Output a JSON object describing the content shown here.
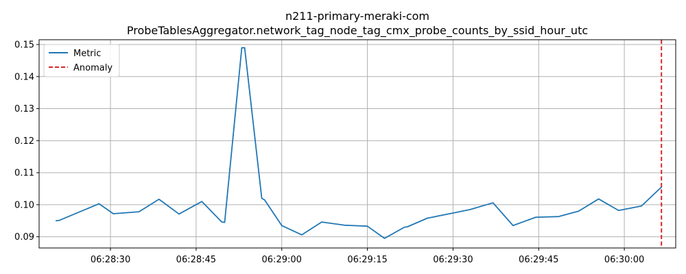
{
  "chart_data": {
    "type": "line",
    "title": "n211-primary-meraki-com",
    "subtitle": "ProbeTablesAggregator.network_tag_node_tag_cmx_probe_counts_by_ssid_hour_utc",
    "xlabel": "",
    "ylabel": "",
    "x_axis": {
      "type": "time",
      "range": [
        "06:28:17.5",
        "06:30:09.0"
      ],
      "ticks": [
        "06:28:30",
        "06:28:45",
        "06:29:00",
        "06:29:15",
        "06:29:30",
        "06:29:45",
        "06:30:00"
      ]
    },
    "y_axis": {
      "range": [
        0.0865,
        0.1515
      ],
      "ticks": [
        "0.09",
        "0.10",
        "0.11",
        "0.12",
        "0.13",
        "0.14",
        "0.15"
      ]
    },
    "grid": true,
    "legend_position": "top-left",
    "series": [
      {
        "name": "Metric",
        "color": "#1f77b4",
        "points": [
          [
            "06:28:20.5",
            0.095
          ],
          [
            "06:28:21.0",
            0.0951
          ],
          [
            "06:28:28.0",
            0.1003
          ],
          [
            "06:28:30.5",
            0.0972
          ],
          [
            "06:28:35.0",
            0.0978
          ],
          [
            "06:28:38.5",
            0.1017
          ],
          [
            "06:28:42.0",
            0.0971
          ],
          [
            "06:28:46.0",
            0.101
          ],
          [
            "06:28:49.5",
            0.0946
          ],
          [
            "06:28:50.0",
            0.0945
          ],
          [
            "06:28:53.0",
            0.149
          ],
          [
            "06:28:53.5",
            0.149
          ],
          [
            "06:28:56.5",
            0.102
          ],
          [
            "06:28:57.0",
            0.1015
          ],
          [
            "06:29:00.0",
            0.0935
          ],
          [
            "06:29:03.5",
            0.0906
          ],
          [
            "06:29:07.0",
            0.0946
          ],
          [
            "06:29:11.0",
            0.0936
          ],
          [
            "06:29:15.0",
            0.0933
          ],
          [
            "06:29:18.0",
            0.0895
          ],
          [
            "06:29:21.5",
            0.093
          ],
          [
            "06:29:22.0",
            0.0931
          ],
          [
            "06:29:25.5",
            0.0958
          ],
          [
            "06:29:30.0",
            0.0974
          ],
          [
            "06:29:33.0",
            0.0985
          ],
          [
            "06:29:37.0",
            0.1006
          ],
          [
            "06:29:40.5",
            0.0935
          ],
          [
            "06:29:44.5",
            0.0961
          ],
          [
            "06:29:48.5",
            0.0963
          ],
          [
            "06:29:52.0",
            0.098
          ],
          [
            "06:29:55.5",
            0.1018
          ],
          [
            "06:29:59.0",
            0.0982
          ],
          [
            "06:30:03.0",
            0.0996
          ],
          [
            "06:30:06.5",
            0.1055
          ]
        ]
      }
    ],
    "markers": [
      {
        "name": "Anomaly",
        "type": "vline",
        "x": "06:30:06.5",
        "color": "#d62728",
        "style": "dashed"
      }
    ]
  }
}
